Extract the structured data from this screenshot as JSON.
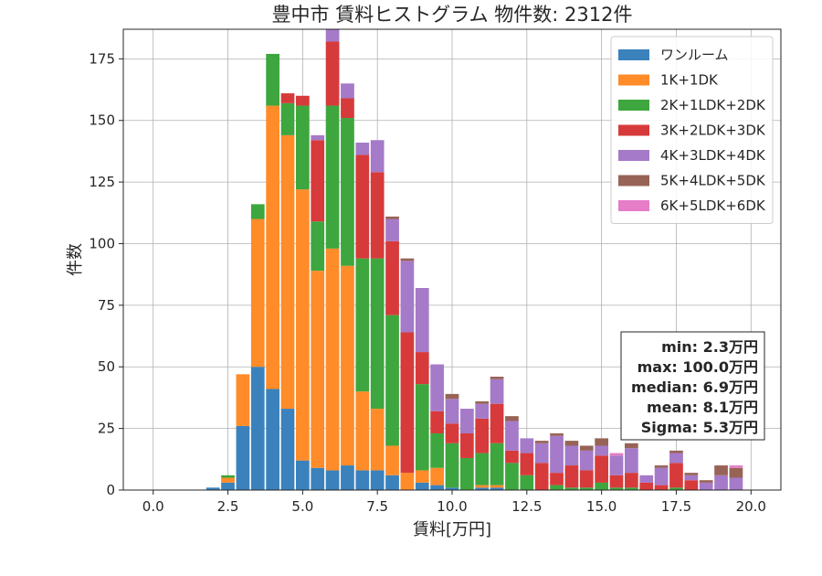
{
  "chart_data": {
    "type": "bar",
    "stacked": true,
    "title": "豊中市 賃料ヒストグラム  物件数: 2312件",
    "xlabel": "賃料[万円]",
    "ylabel": "件数",
    "xlim": [
      -1,
      21
    ],
    "ylim": [
      0,
      187
    ],
    "xticks": [
      0,
      2.5,
      5,
      7.5,
      10,
      12.5,
      15,
      17.5,
      20
    ],
    "xtick_labels": [
      "0.0",
      "2.5",
      "5.0",
      "7.5",
      "10.0",
      "12.5",
      "15.0",
      "17.5",
      "20.0"
    ],
    "yticks": [
      0,
      25,
      50,
      75,
      100,
      125,
      150,
      175
    ],
    "ytick_labels": [
      "0",
      "25",
      "50",
      "75",
      "100",
      "125",
      "150",
      "175"
    ],
    "grid": true,
    "legend_position": "upper-right",
    "bin_width": 0.5,
    "bin_centers": [
      2,
      2.5,
      3,
      3.5,
      4,
      4.5,
      5,
      5.5,
      6,
      6.5,
      7,
      7.5,
      8,
      8.5,
      9,
      9.5,
      10,
      10.5,
      11,
      11.5,
      12,
      12.5,
      13,
      13.5,
      14,
      14.5,
      15,
      15.5,
      16,
      16.5,
      17,
      17.5,
      18,
      18.5,
      19,
      19.5
    ],
    "series": [
      {
        "name": "ワンルーム",
        "color": "#3b82bc",
        "values": [
          1,
          3,
          26,
          50,
          41,
          33,
          12,
          9,
          8,
          10,
          8,
          8,
          6,
          0,
          3,
          2,
          1,
          0,
          1,
          1,
          0,
          0,
          0,
          0,
          0,
          0,
          0,
          0,
          0,
          0,
          0,
          0,
          0,
          0,
          0,
          0
        ]
      },
      {
        "name": "1K+1DK",
        "color": "#ff8c29",
        "values": [
          0,
          2,
          21,
          60,
          115,
          111,
          110,
          80,
          90,
          81,
          32,
          25,
          12,
          7,
          5,
          7,
          0,
          0,
          1,
          1,
          0,
          0,
          0,
          0,
          0,
          0,
          0,
          0,
          0,
          0,
          0,
          0,
          0,
          0,
          0,
          0
        ]
      },
      {
        "name": "2K+1LDK+2DK",
        "color": "#3ea63e",
        "values": [
          0,
          1,
          0,
          6,
          21,
          13,
          34,
          20,
          58,
          60,
          54,
          61,
          53,
          0,
          35,
          14,
          18,
          13,
          13,
          17,
          11,
          6,
          0,
          2,
          1,
          1,
          3,
          1,
          1,
          0,
          0,
          1,
          0,
          0,
          0,
          0
        ]
      },
      {
        "name": "3K+2LDK+3DK",
        "color": "#d73a3a",
        "values": [
          0,
          0,
          0,
          0,
          0,
          4,
          4,
          33,
          26,
          8,
          42,
          35,
          30,
          57,
          13,
          9,
          8,
          10,
          14,
          16,
          5,
          9,
          11,
          5,
          9,
          7,
          11,
          5,
          6,
          3,
          2,
          10,
          4,
          0,
          0,
          0
        ]
      },
      {
        "name": "4K+3LDK+4DK",
        "color": "#a57ac8",
        "values": [
          0,
          0,
          0,
          0,
          0,
          0,
          0,
          2,
          5,
          6,
          5,
          13,
          9,
          29,
          26,
          19,
          10,
          10,
          6,
          10,
          12,
          6,
          8,
          15,
          8,
          8,
          4,
          8,
          10,
          3,
          7,
          4,
          2,
          3,
          6,
          5
        ]
      },
      {
        "name": "5K+4LDK+5DK",
        "color": "#976356",
        "values": [
          0,
          0,
          0,
          0,
          0,
          0,
          0,
          0,
          0,
          0,
          0,
          0,
          1,
          1,
          0,
          0,
          2,
          0,
          1,
          1,
          2,
          0,
          1,
          1,
          2,
          2,
          3,
          0,
          2,
          0,
          1,
          1,
          1,
          1,
          4,
          4
        ]
      },
      {
        "name": "6K+5LDK+6DK",
        "color": "#e57dc7",
        "values": [
          0,
          0,
          0,
          0,
          0,
          0,
          0,
          0,
          0,
          0,
          0,
          0,
          0,
          0,
          0,
          0,
          0,
          0,
          0,
          0,
          0,
          0,
          0,
          0,
          0,
          0,
          0,
          1,
          0,
          0,
          0,
          0,
          0,
          0,
          0,
          1
        ]
      }
    ],
    "stats_box": [
      "min: 2.3万円",
      "max: 100.0万円",
      "median: 6.9万円",
      "mean: 8.1万円",
      "Sigma: 5.3万円"
    ]
  }
}
